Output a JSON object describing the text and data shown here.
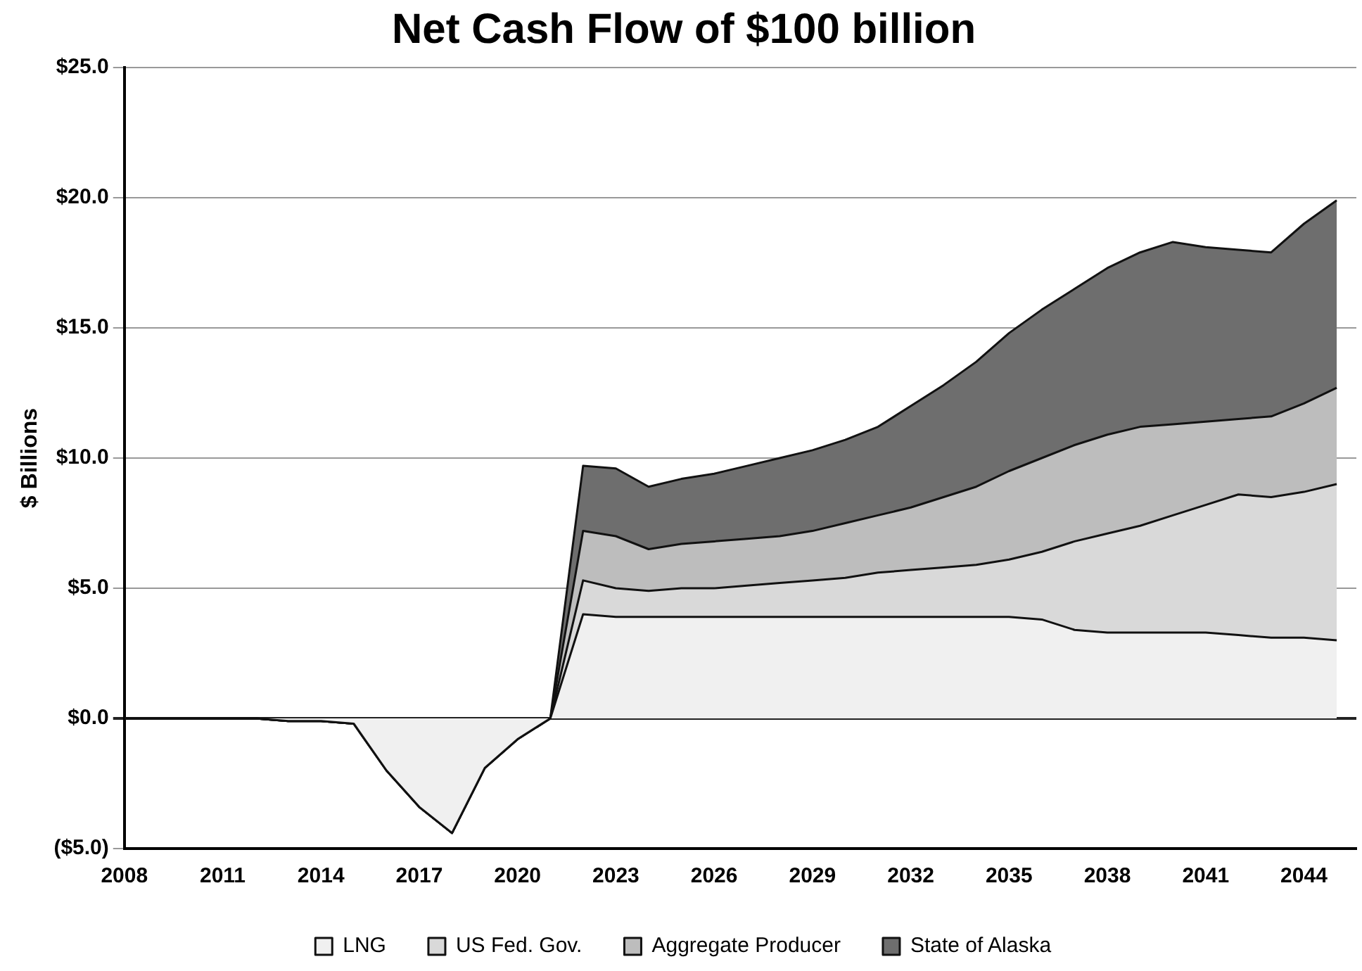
{
  "chart_data": {
    "type": "area",
    "title": "Net Cash Flow of $100 billion",
    "ylabel": "$ Billions",
    "stacked": true,
    "x": [
      2008,
      2009,
      2010,
      2011,
      2012,
      2013,
      2014,
      2015,
      2016,
      2017,
      2018,
      2019,
      2020,
      2021,
      2022,
      2023,
      2024,
      2025,
      2026,
      2027,
      2028,
      2029,
      2030,
      2031,
      2032,
      2033,
      2034,
      2035,
      2036,
      2037,
      2038,
      2039,
      2040,
      2041,
      2042,
      2043,
      2044,
      2045
    ],
    "series": [
      {
        "name": "LNG",
        "color": "#f0f0f0",
        "values": [
          0,
          0,
          0,
          0,
          0,
          -0.1,
          -0.1,
          -0.2,
          -2.0,
          -3.4,
          -4.4,
          -1.9,
          -0.8,
          0,
          4.0,
          3.9,
          3.9,
          3.9,
          3.9,
          3.9,
          3.9,
          3.9,
          3.9,
          3.9,
          3.9,
          3.9,
          3.9,
          3.9,
          3.8,
          3.4,
          3.3,
          3.3,
          3.3,
          3.3,
          3.2,
          3.1,
          3.1,
          3.0
        ]
      },
      {
        "name": "US Fed. Gov.",
        "color": "#d9d9d9",
        "values": [
          0,
          0,
          0,
          0,
          0,
          0,
          0,
          0,
          0,
          0,
          0,
          0,
          0,
          0,
          1.3,
          1.1,
          1.0,
          1.1,
          1.1,
          1.2,
          1.3,
          1.4,
          1.5,
          1.7,
          1.8,
          1.9,
          2.0,
          2.2,
          2.6,
          3.4,
          3.8,
          4.1,
          4.5,
          4.9,
          5.4,
          5.4,
          5.6,
          6.0
        ]
      },
      {
        "name": "Aggregate Producer",
        "color": "#bdbdbd",
        "values": [
          0,
          0,
          0,
          0,
          0,
          0,
          0,
          0,
          0,
          0,
          0,
          0,
          0,
          0,
          1.9,
          2.0,
          1.6,
          1.7,
          1.8,
          1.8,
          1.8,
          1.9,
          2.1,
          2.2,
          2.4,
          2.7,
          3.0,
          3.4,
          3.6,
          3.7,
          3.8,
          3.8,
          3.5,
          3.2,
          2.9,
          3.1,
          3.4,
          3.7
        ]
      },
      {
        "name": "State of Alaska",
        "color": "#6e6e6e",
        "values": [
          0,
          0,
          0,
          0,
          0,
          0,
          0,
          0,
          0,
          0,
          0,
          0,
          0,
          0,
          2.5,
          2.6,
          2.4,
          2.5,
          2.6,
          2.8,
          3.0,
          3.1,
          3.2,
          3.4,
          3.9,
          4.3,
          4.8,
          5.3,
          5.7,
          6.0,
          6.4,
          6.7,
          7.0,
          6.7,
          6.5,
          6.3,
          6.9,
          7.2
        ]
      }
    ],
    "xlim": [
      2008,
      2045.6
    ],
    "xticks": [
      2008,
      2011,
      2014,
      2017,
      2020,
      2023,
      2026,
      2029,
      2032,
      2035,
      2038,
      2041,
      2044
    ],
    "ylim": [
      -5,
      25
    ],
    "yticks": [
      {
        "value": -5,
        "label": "($5.0)"
      },
      {
        "value": 0,
        "label": "$0.0"
      },
      {
        "value": 5,
        "label": "$5.0"
      },
      {
        "value": 10,
        "label": "$10.0"
      },
      {
        "value": 15,
        "label": "$15.0"
      },
      {
        "value": 20,
        "label": "$20.0"
      },
      {
        "value": 25,
        "label": "$25.0"
      }
    ],
    "grid": "y",
    "legend": "bottom"
  }
}
